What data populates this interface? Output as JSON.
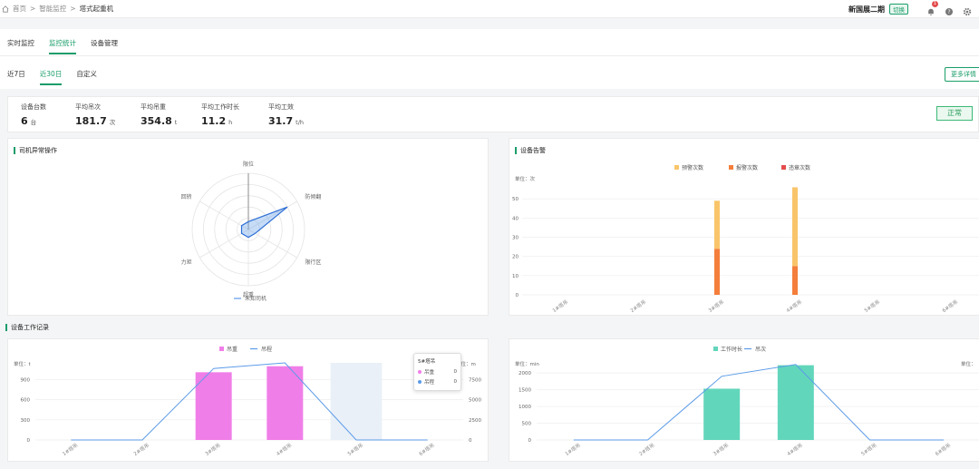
{
  "breadcrumb": {
    "home": "首页",
    "sep": ">",
    "section": "智能监控",
    "current": "塔式起重机"
  },
  "header": {
    "project_name": "新国展二期",
    "switch_label": "切换",
    "notification_count": "1"
  },
  "tabs": [
    {
      "label": "实时监控"
    },
    {
      "label": "监控统计"
    },
    {
      "label": "设备管理"
    }
  ],
  "subtabs": [
    {
      "label": "近7日"
    },
    {
      "label": "近30日"
    },
    {
      "label": "自定义"
    }
  ],
  "more_label": "更多详情",
  "stats": [
    {
      "label": "设备台数",
      "value": "6",
      "unit": "台"
    },
    {
      "label": "平均吊次",
      "value": "181.7",
      "unit": "次"
    },
    {
      "label": "平均吊重",
      "value": "354.8",
      "unit": "t"
    },
    {
      "label": "平均工作时长",
      "value": "11.2",
      "unit": "h"
    },
    {
      "label": "平均工效",
      "value": "31.7",
      "unit": "t/h"
    }
  ],
  "status": "正常",
  "colors": {
    "accent": "#1a9d6a",
    "warn": "#f9c56a",
    "alarm": "#f47e3b",
    "violation": "#e34d4d",
    "weight": "#f07ee8",
    "work": "#62d6bb",
    "line": "#5b9be8"
  },
  "chart_data": [
    {
      "type": "radar",
      "title": "司机异常操作",
      "indicators": [
        "限位",
        "防倾翻",
        "限行区",
        "超重",
        "力矩",
        "回转"
      ],
      "series": [
        {
          "name": "未知司机",
          "values": [
            0,
            80,
            0,
            0,
            0,
            0
          ]
        }
      ],
      "legend": "bottom"
    },
    {
      "type": "bar",
      "title": "设备告警",
      "unit_label": "单位：次",
      "stacked": true,
      "categories": [
        "1#塔吊",
        "2#塔吊",
        "3#塔吊",
        "4#塔吊",
        "5#塔吊",
        "6#塔吊"
      ],
      "series": [
        {
          "name": "预警次数",
          "values": [
            0,
            0,
            25,
            41,
            0,
            0
          ]
        },
        {
          "name": "报警次数",
          "values": [
            0,
            0,
            24,
            15,
            0,
            0
          ]
        },
        {
          "name": "违章次数",
          "values": [
            0,
            0,
            0,
            0,
            0,
            0
          ]
        }
      ],
      "yticks": [
        0,
        10,
        20,
        30,
        40,
        50
      ],
      "ylim": [
        0,
        60
      ],
      "legend": "top"
    },
    {
      "type": "bar",
      "title": "设备工作记录",
      "left_unit": "单位：t",
      "right_unit": "单位：m",
      "categories": [
        "1#塔吊",
        "2#塔吊",
        "3#塔吊",
        "4#塔吊",
        "5#塔吊",
        "6#塔吊"
      ],
      "series": [
        {
          "name": "吊重",
          "type": "bar",
          "values": [
            0,
            0,
            1010,
            1100,
            0,
            0
          ]
        },
        {
          "name": "吊程",
          "type": "line",
          "values": [
            0,
            0,
            8900,
            9600,
            0,
            0
          ]
        }
      ],
      "yticks": [
        0,
        300,
        600,
        900
      ],
      "ylim": [
        0,
        1150
      ],
      "yticks_right": [
        0,
        2500,
        5000,
        7500
      ],
      "ylim_right": [
        0,
        9600
      ],
      "highlight_category": "5#塔吊",
      "legend": "top"
    },
    {
      "type": "bar",
      "unit_label": "单位：min",
      "right_unit": "单位：",
      "categories": [
        "1#塔吊",
        "2#塔吊",
        "3#塔吊",
        "4#塔吊",
        "5#塔吊",
        "6#塔吊"
      ],
      "series": [
        {
          "name": "工作时长",
          "type": "bar",
          "values": [
            0,
            0,
            1530,
            2230,
            0,
            0
          ]
        },
        {
          "name": "吊次",
          "type": "line",
          "values": [
            0,
            0,
            1900,
            2250,
            0,
            0
          ]
        }
      ],
      "yticks": [
        0,
        500,
        1000,
        1500,
        2000
      ],
      "ylim": [
        0,
        2300
      ],
      "legend": "top"
    }
  ],
  "tooltip": {
    "title": "5#塔吊",
    "rows": [
      {
        "name": "吊重",
        "value": "0"
      },
      {
        "name": "吊程",
        "value": "0"
      }
    ]
  }
}
